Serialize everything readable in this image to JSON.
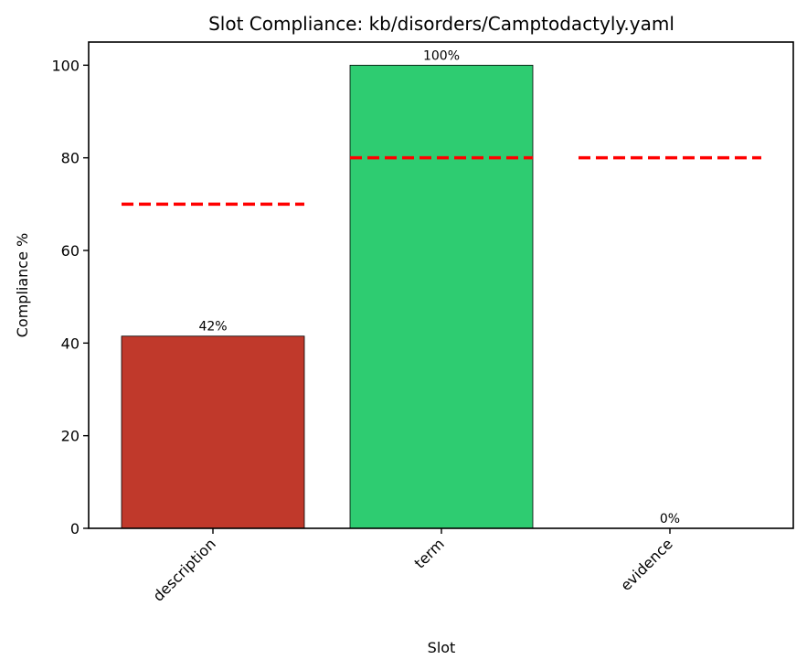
{
  "chart_data": {
    "type": "bar",
    "title": "Slot Compliance: kb/disorders/Camptodactyly.yaml",
    "xlabel": "Slot",
    "ylabel": "Compliance %",
    "categories": [
      "description",
      "term",
      "evidence"
    ],
    "values": [
      41.5,
      100,
      0
    ],
    "value_labels": [
      "42%",
      "100%",
      "0%"
    ],
    "bar_colors": [
      "#c0392b",
      "#2ecc71",
      "#2ecc71"
    ],
    "thresholds": [
      70,
      80,
      80
    ],
    "threshold_color": "#ff0000",
    "threshold_style": "dashed",
    "ylim": [
      0,
      105
    ],
    "yticks": [
      0,
      20,
      40,
      60,
      80,
      100
    ],
    "grid": false,
    "legend": null
  }
}
